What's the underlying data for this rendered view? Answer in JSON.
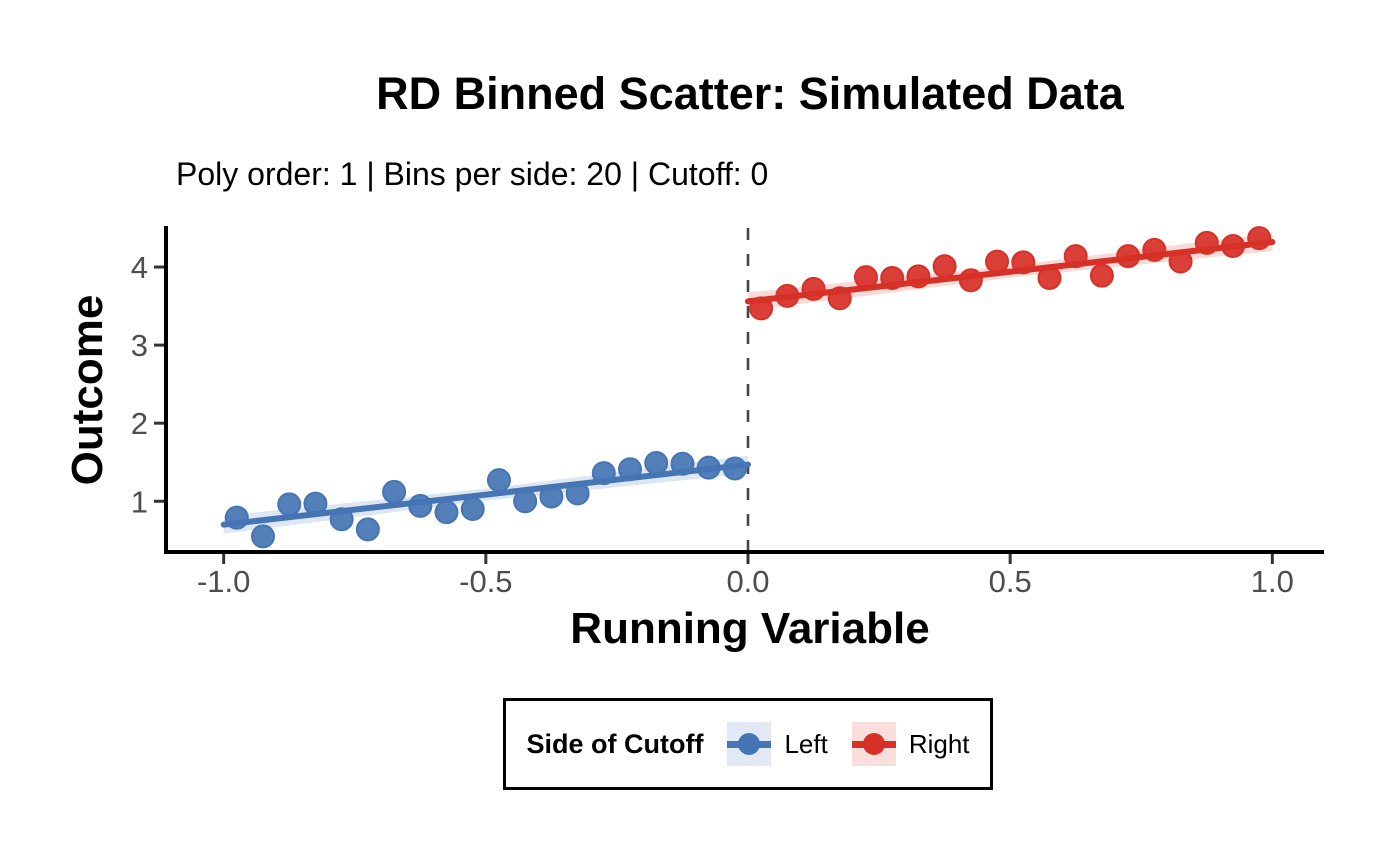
{
  "chart_data": {
    "type": "scatter",
    "title": "RD Binned Scatter: Simulated Data",
    "subtitle": "Poly order: 1 | Bins per side: 20 | Cutoff: 0",
    "xlabel": "Running Variable",
    "ylabel": "Outcome",
    "xlim": [
      -1.11,
      1.11
    ],
    "ylim": [
      0.35,
      4.5
    ],
    "grid": false,
    "cutoff": 0,
    "cutoff_line": {
      "color": "#474747",
      "style": "dashed"
    },
    "x_ticks": {
      "values": [
        -1.0,
        -0.5,
        0.0,
        0.5,
        1.0
      ],
      "labels": [
        "-1.0",
        "-0.5",
        "0.0",
        "0.5",
        "1.0"
      ]
    },
    "y_ticks": {
      "values": [
        1,
        2,
        3,
        4
      ],
      "labels": [
        "1",
        "2",
        "3",
        "4"
      ]
    },
    "axis_text_color": "#4d4d4d",
    "series": [
      {
        "name": "Left",
        "color": "#4575b4",
        "key_bg": "#e2e9f4",
        "points": [
          [
            -0.975,
            0.79
          ],
          [
            -0.925,
            0.55
          ],
          [
            -0.875,
            0.96
          ],
          [
            -0.825,
            0.97
          ],
          [
            -0.775,
            0.77
          ],
          [
            -0.725,
            0.64
          ],
          [
            -0.675,
            1.12
          ],
          [
            -0.625,
            0.94
          ],
          [
            -0.575,
            0.86
          ],
          [
            -0.525,
            0.9
          ],
          [
            -0.475,
            1.27
          ],
          [
            -0.425,
            1.0
          ],
          [
            -0.375,
            1.06
          ],
          [
            -0.325,
            1.1
          ],
          [
            -0.275,
            1.36
          ],
          [
            -0.225,
            1.41
          ],
          [
            -0.175,
            1.49
          ],
          [
            -0.125,
            1.48
          ],
          [
            -0.075,
            1.43
          ],
          [
            -0.025,
            1.42
          ]
        ],
        "fit": {
          "x": [
            -1.0,
            0.0
          ],
          "y": [
            0.7,
            1.47
          ]
        }
      },
      {
        "name": "Right",
        "color": "#d73027",
        "key_bg": "#f9dfdc",
        "points": [
          [
            0.025,
            3.47
          ],
          [
            0.075,
            3.63
          ],
          [
            0.125,
            3.72
          ],
          [
            0.175,
            3.6
          ],
          [
            0.225,
            3.87
          ],
          [
            0.275,
            3.86
          ],
          [
            0.325,
            3.88
          ],
          [
            0.375,
            4.01
          ],
          [
            0.425,
            3.83
          ],
          [
            0.475,
            4.07
          ],
          [
            0.525,
            4.06
          ],
          [
            0.575,
            3.86
          ],
          [
            0.625,
            4.14
          ],
          [
            0.675,
            3.89
          ],
          [
            0.725,
            4.14
          ],
          [
            0.775,
            4.22
          ],
          [
            0.825,
            4.07
          ],
          [
            0.875,
            4.31
          ],
          [
            0.925,
            4.27
          ],
          [
            0.975,
            4.37
          ]
        ],
        "fit": {
          "x": [
            0.0,
            1.0
          ],
          "y": [
            3.56,
            4.32
          ]
        }
      }
    ],
    "legend": {
      "position": "bottom",
      "title": "Side of Cutoff",
      "entries": [
        {
          "label": "Left"
        },
        {
          "label": "Right"
        }
      ]
    }
  }
}
